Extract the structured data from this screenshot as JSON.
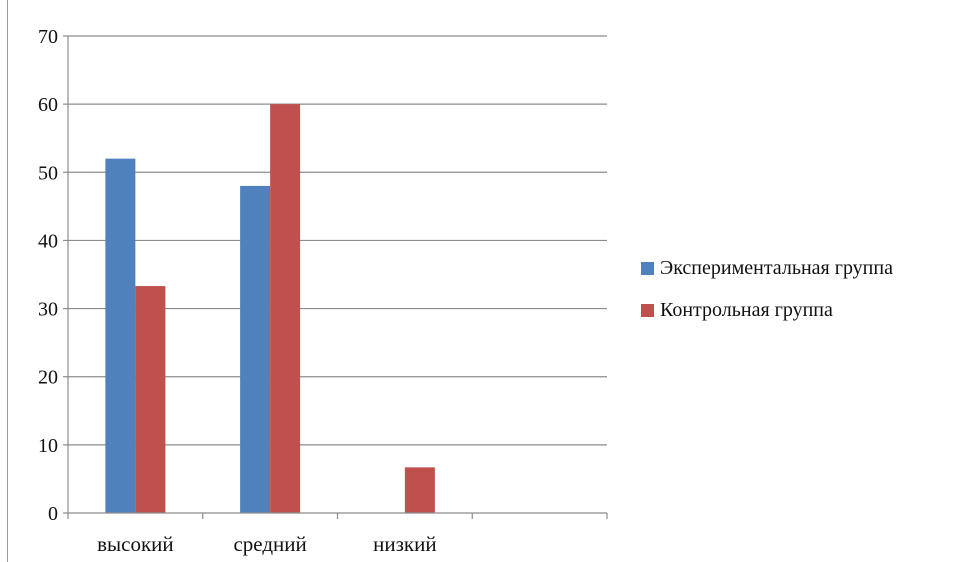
{
  "chart_data": {
    "type": "bar",
    "title": "",
    "xlabel": "",
    "ylabel": "",
    "categories": [
      "высокий",
      "средний",
      "низкий",
      ""
    ],
    "ylim": [
      0,
      70
    ],
    "yticks": [
      0,
      10,
      20,
      30,
      40,
      50,
      60,
      70
    ],
    "grid": true,
    "legend_position": "right",
    "series": [
      {
        "name": "Экспериментальная группа",
        "color": "#4f81bd",
        "values": [
          52,
          48,
          0,
          null
        ]
      },
      {
        "name": "Контрольная группа",
        "color": "#c0504d",
        "values": [
          33.3,
          60,
          6.7,
          null
        ]
      }
    ]
  }
}
